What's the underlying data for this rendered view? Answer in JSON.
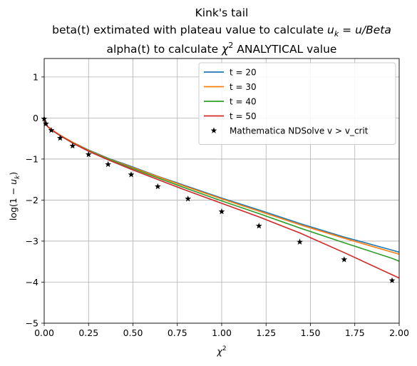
{
  "chart_data": {
    "type": "line",
    "title": {
      "line1": "Kink's tail",
      "line2_prefix": "beta(t) extimated with plateau value to calculate ",
      "line2_math": "u",
      "line2_sub": "k",
      "line2_rest": " = u/Beta",
      "line3_prefix": "alpha(t) to calculate ",
      "line3_math": "χ",
      "line3_sup": "2",
      "line3_rest": " ANALYTICAL value"
    },
    "xlabel": {
      "math": "χ",
      "sup": "2"
    },
    "ylabel": {
      "prefix": "log(1 − ",
      "math": "u",
      "sub": "k",
      "suffix": ")"
    },
    "xlim": [
      0,
      2
    ],
    "ylim": [
      -5,
      1.45
    ],
    "xticks": [
      {
        "value": 0.0,
        "label": "0.00"
      },
      {
        "value": 0.25,
        "label": "0.25"
      },
      {
        "value": 0.5,
        "label": "0.50"
      },
      {
        "value": 0.75,
        "label": "0.75"
      },
      {
        "value": 1.0,
        "label": "1.00"
      },
      {
        "value": 1.25,
        "label": "1.25"
      },
      {
        "value": 1.5,
        "label": "1.50"
      },
      {
        "value": 1.75,
        "label": "1.75"
      },
      {
        "value": 2.0,
        "label": "2.00"
      }
    ],
    "yticks": [
      {
        "value": 1,
        "label": "1"
      },
      {
        "value": 0,
        "label": "0"
      },
      {
        "value": -1,
        "label": "−1"
      },
      {
        "value": -2,
        "label": "−2"
      },
      {
        "value": -3,
        "label": "−3"
      },
      {
        "value": -4,
        "label": "−4"
      },
      {
        "value": -5,
        "label": "−5"
      }
    ],
    "grid": true,
    "legend_position": "top-right",
    "series": [
      {
        "name": "t = 20",
        "kind": "line",
        "color": "#1f77b4",
        "x": [
          0,
          0.01,
          0.04,
          0.09,
          0.16,
          0.25,
          0.36,
          0.49,
          0.64,
          0.81,
          1.0,
          1.21,
          1.44,
          1.69,
          1.96,
          2.0
        ],
        "y": [
          0,
          -0.17,
          -0.28,
          -0.42,
          -0.59,
          -0.78,
          -0.98,
          -1.18,
          -1.42,
          -1.67,
          -1.95,
          -2.24,
          -2.57,
          -2.9,
          -3.22,
          -3.27
        ]
      },
      {
        "name": "t = 30",
        "kind": "line",
        "color": "#ff7f0e",
        "x": [
          0,
          0.01,
          0.04,
          0.09,
          0.16,
          0.25,
          0.36,
          0.49,
          0.64,
          0.81,
          1.0,
          1.21,
          1.44,
          1.69,
          1.96,
          2.0
        ],
        "y": [
          0,
          -0.17,
          -0.28,
          -0.42,
          -0.59,
          -0.79,
          -0.99,
          -1.2,
          -1.43,
          -1.69,
          -1.97,
          -2.27,
          -2.6,
          -2.93,
          -3.27,
          -3.32
        ]
      },
      {
        "name": "t = 40",
        "kind": "line",
        "color": "#2ca02c",
        "x": [
          0,
          0.01,
          0.04,
          0.09,
          0.16,
          0.25,
          0.36,
          0.49,
          0.64,
          0.81,
          1.0,
          1.21,
          1.44,
          1.69,
          1.96,
          2.0
        ],
        "y": [
          0,
          -0.17,
          -0.29,
          -0.43,
          -0.6,
          -0.8,
          -1.0,
          -1.22,
          -1.46,
          -1.73,
          -2.02,
          -2.33,
          -2.68,
          -3.04,
          -3.42,
          -3.49
        ]
      },
      {
        "name": "t = 50",
        "kind": "line",
        "color": "#d62728",
        "x": [
          0,
          0.01,
          0.04,
          0.09,
          0.16,
          0.25,
          0.36,
          0.49,
          0.64,
          0.81,
          1.0,
          1.21,
          1.44,
          1.69,
          1.96,
          2.0
        ],
        "y": [
          0,
          -0.17,
          -0.29,
          -0.43,
          -0.61,
          -0.81,
          -1.02,
          -1.25,
          -1.5,
          -1.78,
          -2.08,
          -2.41,
          -2.8,
          -3.28,
          -3.82,
          -3.9
        ]
      },
      {
        "name": "Mathematica NDSolve v > v_crit",
        "kind": "scatter",
        "color": "#000000",
        "marker": "star",
        "x": [
          0.0,
          0.01,
          0.04,
          0.09,
          0.16,
          0.25,
          0.36,
          0.49,
          0.64,
          0.81,
          1.0,
          1.21,
          1.44,
          1.69,
          1.96
        ],
        "y": [
          -0.02,
          -0.14,
          -0.3,
          -0.49,
          -0.68,
          -0.89,
          -1.13,
          -1.38,
          -1.67,
          -1.97,
          -2.28,
          -2.63,
          -3.02,
          -3.45,
          -3.96
        ]
      }
    ]
  }
}
